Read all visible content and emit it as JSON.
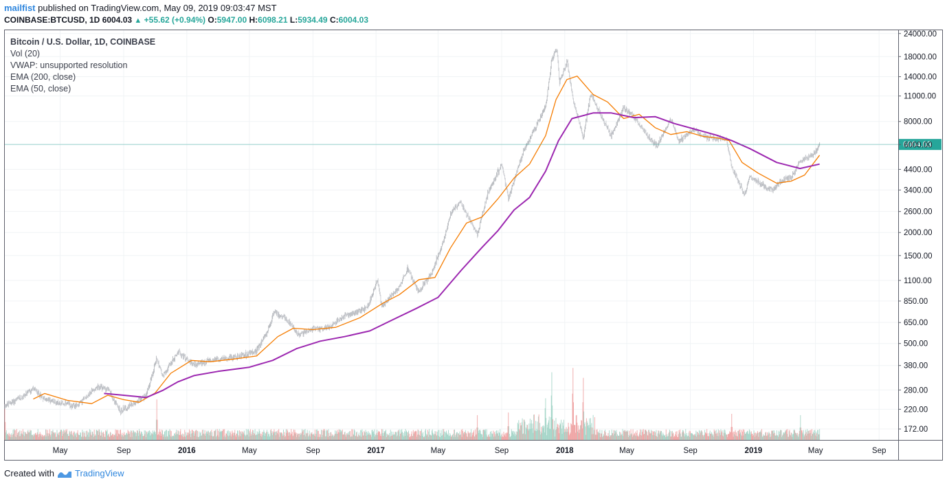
{
  "header": {
    "user": "mailfist",
    "published": "published on TradingView.com, May 09, 2019 09:03:47 MST"
  },
  "ohlc": {
    "symbol": "COINBASE:BTCUSD, 1D",
    "last": "6004.03",
    "change": "+55.62 (+0.94%)",
    "open_label": "O:",
    "open": "5947.00",
    "high_label": "H:",
    "high": "6098.21",
    "low_label": "L:",
    "low": "5934.49",
    "close_label": "C:",
    "close": "6004.03"
  },
  "legend": {
    "title": "Bitcoin / U.S. Dollar, 1D, COINBASE",
    "items": [
      "Vol (20)",
      "VWAP: unsupported resolution",
      "EMA (200, close)",
      "EMA (50, close)"
    ]
  },
  "footer": {
    "created_with": "Created with",
    "brand": "TradingView"
  },
  "colors": {
    "up": "#a6d6c9",
    "down": "#efa6a6",
    "ema50": "#f57c00",
    "ema200": "#9c27b0",
    "price_line": "#26a69a",
    "grid": "#f0f3f5"
  },
  "chart_data": {
    "type": "line",
    "title": "Bitcoin / U.S. Dollar, 1D, COINBASE",
    "xlabel": "",
    "ylabel": "",
    "y_scale": "log",
    "ylim": [
      150,
      25000
    ],
    "current_price": 6004.03,
    "current_price_label": "6004.03",
    "y_ticks": [
      24000,
      18000,
      14000,
      11000,
      8000,
      6000,
      4400,
      3400,
      2600,
      2000,
      1500,
      1100,
      850,
      650,
      500,
      380,
      280,
      220,
      172
    ],
    "y_tick_labels": [
      "24000.00",
      "18000.00",
      "14000.00",
      "11000.00",
      "8000.00",
      "6000.00",
      "4400.00",
      "3400.00",
      "2600.00",
      "2000.00",
      "1500.00",
      "1100.00",
      "850.00",
      "650.00",
      "500.00",
      "380.00",
      "280.00",
      "220.00",
      "172.00"
    ],
    "x_range": [
      "2015-01-14",
      "2019-10-08"
    ],
    "x_ticks": [
      "2015-05-01",
      "2015-09-01",
      "2016-01-01",
      "2016-05-01",
      "2016-09-01",
      "2017-01-01",
      "2017-05-01",
      "2017-09-01",
      "2018-01-01",
      "2018-05-01",
      "2018-09-01",
      "2019-01-01",
      "2019-05-01",
      "2019-09-01"
    ],
    "x_tick_labels": [
      "May",
      "Sep",
      "2016",
      "May",
      "Sep",
      "2017",
      "May",
      "Sep",
      "2018",
      "May",
      "Sep",
      "2019",
      "May",
      "Sep"
    ],
    "series": [
      {
        "name": "Price",
        "kind": "price",
        "points": [
          [
            "2015-01-14",
            230
          ],
          [
            "2015-02-15",
            255
          ],
          [
            "2015-03-10",
            285
          ],
          [
            "2015-04-01",
            250
          ],
          [
            "2015-05-01",
            238
          ],
          [
            "2015-06-01",
            228
          ],
          [
            "2015-07-10",
            290
          ],
          [
            "2015-08-01",
            285
          ],
          [
            "2015-08-25",
            215
          ],
          [
            "2015-09-15",
            232
          ],
          [
            "2015-10-15",
            262
          ],
          [
            "2015-11-04",
            420
          ],
          [
            "2015-11-15",
            330
          ],
          [
            "2015-12-15",
            450
          ],
          [
            "2016-01-15",
            385
          ],
          [
            "2016-02-15",
            405
          ],
          [
            "2016-03-15",
            415
          ],
          [
            "2016-04-15",
            430
          ],
          [
            "2016-05-15",
            455
          ],
          [
            "2016-06-10",
            620
          ],
          [
            "2016-06-17",
            750
          ],
          [
            "2016-07-15",
            660
          ],
          [
            "2016-08-03",
            560
          ],
          [
            "2016-09-01",
            600
          ],
          [
            "2016-10-01",
            615
          ],
          [
            "2016-11-01",
            705
          ],
          [
            "2016-12-15",
            780
          ],
          [
            "2017-01-04",
            1100
          ],
          [
            "2017-01-12",
            800
          ],
          [
            "2017-02-15",
            1010
          ],
          [
            "2017-03-03",
            1270
          ],
          [
            "2017-03-24",
            950
          ],
          [
            "2017-04-20",
            1230
          ],
          [
            "2017-05-10",
            1750
          ],
          [
            "2017-05-25",
            2500
          ],
          [
            "2017-06-12",
            2950
          ],
          [
            "2017-07-16",
            1950
          ],
          [
            "2017-08-05",
            3250
          ],
          [
            "2017-09-01",
            4700
          ],
          [
            "2017-09-14",
            3050
          ],
          [
            "2017-10-12",
            5400
          ],
          [
            "2017-11-05",
            7400
          ],
          [
            "2017-11-25",
            9500
          ],
          [
            "2017-12-07",
            17500
          ],
          [
            "2017-12-17",
            19600
          ],
          [
            "2017-12-22",
            13000
          ],
          [
            "2018-01-06",
            17000
          ],
          [
            "2018-01-17",
            10500
          ],
          [
            "2018-02-06",
            6500
          ],
          [
            "2018-02-20",
            11200
          ],
          [
            "2018-03-15",
            8300
          ],
          [
            "2018-04-01",
            6700
          ],
          [
            "2018-04-25",
            9500
          ],
          [
            "2018-05-15",
            8500
          ],
          [
            "2018-06-15",
            6400
          ],
          [
            "2018-06-29",
            5900
          ],
          [
            "2018-07-25",
            8300
          ],
          [
            "2018-08-10",
            6200
          ],
          [
            "2018-09-05",
            7300
          ],
          [
            "2018-10-01",
            6600
          ],
          [
            "2018-11-10",
            6400
          ],
          [
            "2018-11-20",
            4500
          ],
          [
            "2018-12-15",
            3200
          ],
          [
            "2018-12-25",
            4000
          ],
          [
            "2019-01-15",
            3650
          ],
          [
            "2019-02-07",
            3400
          ],
          [
            "2019-02-25",
            3850
          ],
          [
            "2019-03-15",
            3950
          ],
          [
            "2019-04-02",
            4900
          ],
          [
            "2019-04-15",
            5100
          ],
          [
            "2019-05-01",
            5400
          ],
          [
            "2019-05-09",
            6004
          ]
        ]
      },
      {
        "name": "EMA (50, close)",
        "kind": "ema50",
        "points": [
          [
            "2015-03-10",
            250
          ],
          [
            "2015-04-01",
            268
          ],
          [
            "2015-05-15",
            246
          ],
          [
            "2015-07-01",
            236
          ],
          [
            "2015-08-01",
            262
          ],
          [
            "2015-09-01",
            248
          ],
          [
            "2015-10-01",
            240
          ],
          [
            "2015-11-01",
            270
          ],
          [
            "2015-12-01",
            345
          ],
          [
            "2016-01-10",
            405
          ],
          [
            "2016-02-15",
            398
          ],
          [
            "2016-04-01",
            412
          ],
          [
            "2016-05-15",
            428
          ],
          [
            "2016-06-25",
            545
          ],
          [
            "2016-07-25",
            605
          ],
          [
            "2016-09-01",
            595
          ],
          [
            "2016-10-15",
            612
          ],
          [
            "2016-12-01",
            690
          ],
          [
            "2017-01-15",
            830
          ],
          [
            "2017-02-15",
            920
          ],
          [
            "2017-03-25",
            1110
          ],
          [
            "2017-04-25",
            1140
          ],
          [
            "2017-05-25",
            1650
          ],
          [
            "2017-06-25",
            2250
          ],
          [
            "2017-07-25",
            2430
          ],
          [
            "2017-08-25",
            3050
          ],
          [
            "2017-09-25",
            3950
          ],
          [
            "2017-10-25",
            4700
          ],
          [
            "2017-11-25",
            6700
          ],
          [
            "2017-12-15",
            10500
          ],
          [
            "2018-01-05",
            13500
          ],
          [
            "2018-01-25",
            14100
          ],
          [
            "2018-02-25",
            11200
          ],
          [
            "2018-03-25",
            10200
          ],
          [
            "2018-04-25",
            8300
          ],
          [
            "2018-05-25",
            8750
          ],
          [
            "2018-06-25",
            7400
          ],
          [
            "2018-07-25",
            6800
          ],
          [
            "2018-08-25",
            7050
          ],
          [
            "2018-09-25",
            6650
          ],
          [
            "2018-10-25",
            6500
          ],
          [
            "2018-11-15",
            6300
          ],
          [
            "2018-12-10",
            4800
          ],
          [
            "2019-01-10",
            4200
          ],
          [
            "2019-02-15",
            3700
          ],
          [
            "2019-03-15",
            3800
          ],
          [
            "2019-04-10",
            4100
          ],
          [
            "2019-05-09",
            5250
          ]
        ]
      },
      {
        "name": "EMA (200, close)",
        "kind": "ema200",
        "points": [
          [
            "2015-07-25",
            268
          ],
          [
            "2015-09-01",
            262
          ],
          [
            "2015-10-15",
            255
          ],
          [
            "2015-11-15",
            278
          ],
          [
            "2015-12-15",
            310
          ],
          [
            "2016-01-15",
            335
          ],
          [
            "2016-03-01",
            353
          ],
          [
            "2016-05-01",
            372
          ],
          [
            "2016-06-15",
            405
          ],
          [
            "2016-08-01",
            470
          ],
          [
            "2016-09-15",
            515
          ],
          [
            "2016-11-01",
            545
          ],
          [
            "2016-12-20",
            585
          ],
          [
            "2017-02-01",
            670
          ],
          [
            "2017-03-20",
            775
          ],
          [
            "2017-05-01",
            890
          ],
          [
            "2017-06-15",
            1250
          ],
          [
            "2017-07-25",
            1660
          ],
          [
            "2017-08-25",
            2050
          ],
          [
            "2017-09-25",
            2650
          ],
          [
            "2017-10-25",
            3100
          ],
          [
            "2017-11-25",
            4300
          ],
          [
            "2017-12-20",
            6300
          ],
          [
            "2018-01-15",
            8300
          ],
          [
            "2018-02-25",
            8900
          ],
          [
            "2018-04-01",
            8900
          ],
          [
            "2018-05-15",
            8400
          ],
          [
            "2018-06-25",
            8500
          ],
          [
            "2018-08-01",
            7800
          ],
          [
            "2018-09-15",
            7200
          ],
          [
            "2018-10-25",
            6700
          ],
          [
            "2018-11-20",
            6300
          ],
          [
            "2018-12-25",
            5700
          ],
          [
            "2019-02-15",
            4800
          ],
          [
            "2019-04-01",
            4450
          ],
          [
            "2019-05-09",
            4700
          ]
        ]
      }
    ],
    "volume": {
      "name": "Vol (20)",
      "spikes": [
        [
          "2015-11-04",
          0.62
        ],
        [
          "2015-01-14",
          0.55
        ],
        [
          "2017-12-07",
          0.85
        ],
        [
          "2018-01-17",
          0.9
        ],
        [
          "2017-11-25",
          0.62
        ],
        [
          "2018-02-06",
          0.7
        ],
        [
          "2018-11-20",
          0.4
        ],
        [
          "2019-04-02",
          0.38
        ],
        [
          "2017-09-14",
          0.42
        ],
        [
          "2017-07-16",
          0.38
        ]
      ]
    }
  }
}
